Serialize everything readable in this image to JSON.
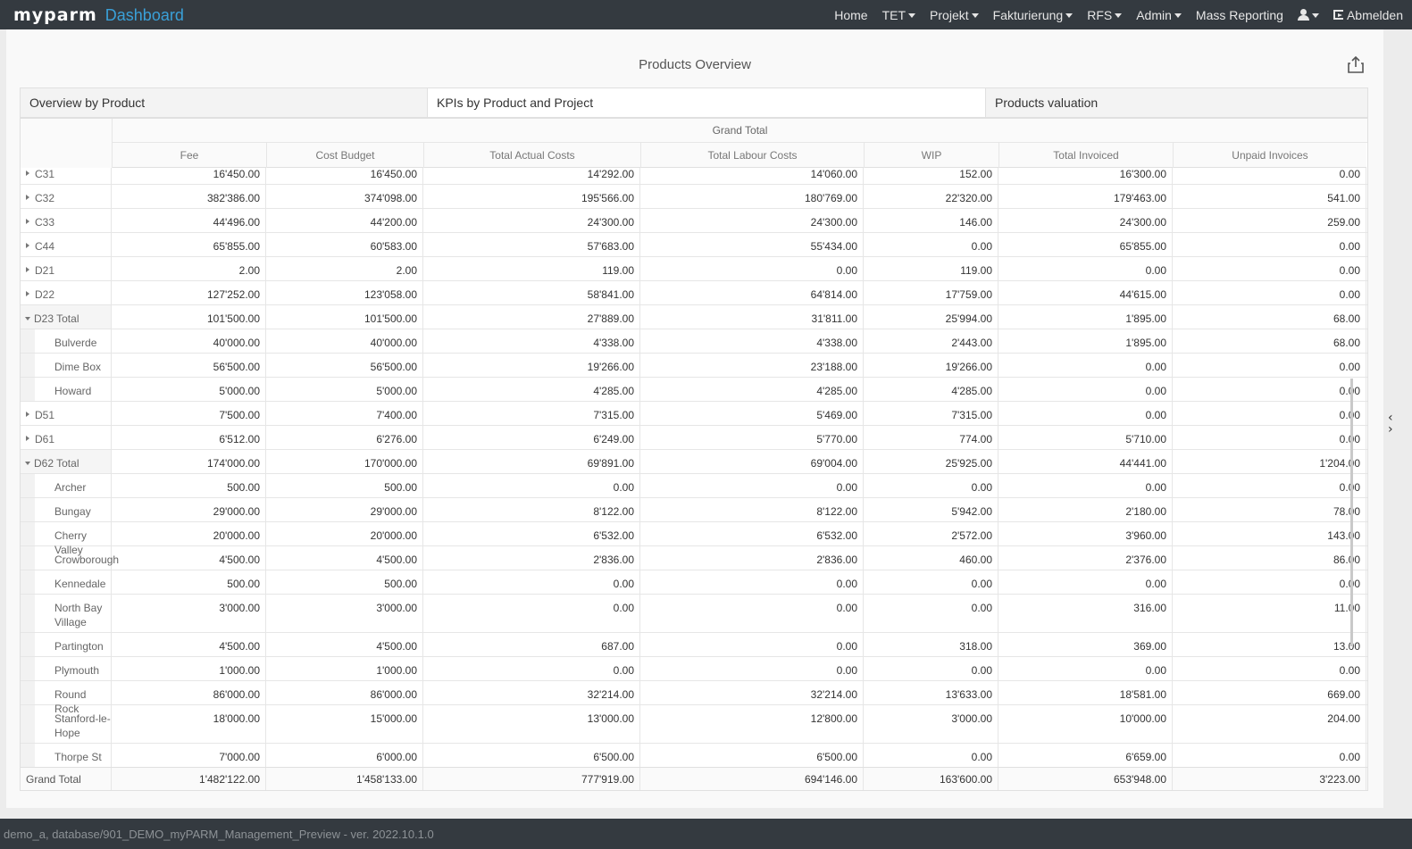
{
  "navbar": {
    "brand_logo": "myparm",
    "brand_app": "Dashboard",
    "items": [
      {
        "label": "Home",
        "dropdown": false
      },
      {
        "label": "TET",
        "dropdown": true
      },
      {
        "label": "Projekt",
        "dropdown": true
      },
      {
        "label": "Fakturierung",
        "dropdown": true
      },
      {
        "label": "RFS",
        "dropdown": true
      },
      {
        "label": "Admin",
        "dropdown": true
      },
      {
        "label": "Mass Reporting",
        "dropdown": false
      }
    ],
    "signout_label": "Abmelden"
  },
  "page": {
    "title": "Products Overview"
  },
  "tabs": [
    {
      "label": "Overview by Product",
      "active": false
    },
    {
      "label": "KPIs by Product and Project",
      "active": true
    },
    {
      "label": "Products valuation",
      "active": false
    }
  ],
  "table": {
    "group_header": "Grand Total",
    "columns": [
      "Fee",
      "Cost Budget",
      "Total Actual Costs",
      "Total Labour Costs",
      "WIP",
      "Total Invoiced",
      "Unpaid Invoices"
    ],
    "rows": [
      {
        "type": "group",
        "label": "C31",
        "values": [
          "16'450.00",
          "16'450.00",
          "14'292.00",
          "14'060.00",
          "152.00",
          "16'300.00",
          "0.00"
        ]
      },
      {
        "type": "group",
        "label": "C32",
        "values": [
          "382'386.00",
          "374'098.00",
          "195'566.00",
          "180'769.00",
          "22'320.00",
          "179'463.00",
          "541.00"
        ]
      },
      {
        "type": "group",
        "label": "C33",
        "values": [
          "44'496.00",
          "44'200.00",
          "24'300.00",
          "24'300.00",
          "146.00",
          "24'300.00",
          "259.00"
        ]
      },
      {
        "type": "group",
        "label": "C44",
        "values": [
          "65'855.00",
          "60'583.00",
          "57'683.00",
          "55'434.00",
          "0.00",
          "65'855.00",
          "0.00"
        ]
      },
      {
        "type": "group",
        "label": "D21",
        "values": [
          "2.00",
          "2.00",
          "119.00",
          "0.00",
          "119.00",
          "0.00",
          "0.00"
        ]
      },
      {
        "type": "group",
        "label": "D22",
        "values": [
          "127'252.00",
          "123'058.00",
          "58'841.00",
          "64'814.00",
          "17'759.00",
          "44'615.00",
          "0.00"
        ]
      },
      {
        "type": "total",
        "label": "D23 Total",
        "values": [
          "101'500.00",
          "101'500.00",
          "27'889.00",
          "31'811.00",
          "25'994.00",
          "1'895.00",
          "68.00"
        ]
      },
      {
        "type": "child",
        "label": "Bulverde",
        "values": [
          "40'000.00",
          "40'000.00",
          "4'338.00",
          "4'338.00",
          "2'443.00",
          "1'895.00",
          "68.00"
        ]
      },
      {
        "type": "child",
        "label": "Dime Box",
        "values": [
          "56'500.00",
          "56'500.00",
          "19'266.00",
          "23'188.00",
          "19'266.00",
          "0.00",
          "0.00"
        ]
      },
      {
        "type": "child",
        "label": "Howard",
        "values": [
          "5'000.00",
          "5'000.00",
          "4'285.00",
          "4'285.00",
          "4'285.00",
          "0.00",
          "0.00"
        ]
      },
      {
        "type": "group",
        "label": "D51",
        "values": [
          "7'500.00",
          "7'400.00",
          "7'315.00",
          "5'469.00",
          "7'315.00",
          "0.00",
          "0.00"
        ]
      },
      {
        "type": "group",
        "label": "D61",
        "values": [
          "6'512.00",
          "6'276.00",
          "6'249.00",
          "5'770.00",
          "774.00",
          "5'710.00",
          "0.00"
        ]
      },
      {
        "type": "total",
        "label": "D62 Total",
        "values": [
          "174'000.00",
          "170'000.00",
          "69'891.00",
          "69'004.00",
          "25'925.00",
          "44'441.00",
          "1'204.00"
        ]
      },
      {
        "type": "child",
        "label": "Archer",
        "values": [
          "500.00",
          "500.00",
          "0.00",
          "0.00",
          "0.00",
          "0.00",
          "0.00"
        ]
      },
      {
        "type": "child",
        "label": "Bungay",
        "values": [
          "29'000.00",
          "29'000.00",
          "8'122.00",
          "8'122.00",
          "5'942.00",
          "2'180.00",
          "78.00"
        ]
      },
      {
        "type": "child",
        "label": "Cherry Valley",
        "values": [
          "20'000.00",
          "20'000.00",
          "6'532.00",
          "6'532.00",
          "2'572.00",
          "3'960.00",
          "143.00"
        ]
      },
      {
        "type": "child",
        "label": "Crowborough",
        "values": [
          "4'500.00",
          "4'500.00",
          "2'836.00",
          "2'836.00",
          "460.00",
          "2'376.00",
          "86.00"
        ]
      },
      {
        "type": "child",
        "label": "Kennedale",
        "values": [
          "500.00",
          "500.00",
          "0.00",
          "0.00",
          "0.00",
          "0.00",
          "0.00"
        ]
      },
      {
        "type": "child",
        "label": "North Bay Village",
        "values": [
          "3'000.00",
          "3'000.00",
          "0.00",
          "0.00",
          "0.00",
          "316.00",
          "11.00"
        ],
        "tall": true
      },
      {
        "type": "child",
        "label": "Partington",
        "values": [
          "4'500.00",
          "4'500.00",
          "687.00",
          "0.00",
          "318.00",
          "369.00",
          "13.00"
        ]
      },
      {
        "type": "child",
        "label": "Plymouth",
        "values": [
          "1'000.00",
          "1'000.00",
          "0.00",
          "0.00",
          "0.00",
          "0.00",
          "0.00"
        ]
      },
      {
        "type": "child",
        "label": "Round Rock",
        "values": [
          "86'000.00",
          "86'000.00",
          "32'214.00",
          "32'214.00",
          "13'633.00",
          "18'581.00",
          "669.00"
        ]
      },
      {
        "type": "child",
        "label": "Stanford-le-Hope",
        "values": [
          "18'000.00",
          "15'000.00",
          "13'000.00",
          "12'800.00",
          "3'000.00",
          "10'000.00",
          "204.00"
        ],
        "tall": true
      },
      {
        "type": "child",
        "label": "Thorpe St Andrew",
        "values": [
          "7'000.00",
          "6'000.00",
          "6'500.00",
          "6'500.00",
          "0.00",
          "6'659.00",
          "0.00"
        ],
        "tall": true
      }
    ],
    "grand_total": {
      "label": "Grand Total",
      "values": [
        "1'482'122.00",
        "1'458'133.00",
        "777'919.00",
        "694'146.00",
        "163'600.00",
        "653'948.00",
        "3'223.00"
      ]
    }
  },
  "statusbar": {
    "text": "demo_a, database/901_DEMO_myPARM_Management_Preview - ver. 2022.10.1.0"
  },
  "icons": {
    "export": "share-export-icon",
    "user": "user-icon",
    "signout": "sign-out-icon",
    "side_toggle": "chevrons-left-right-icon"
  },
  "colors": {
    "navbar_bg": "#343a40",
    "brand_accent": "#3aa0d8",
    "page_bg": "#ececec"
  }
}
